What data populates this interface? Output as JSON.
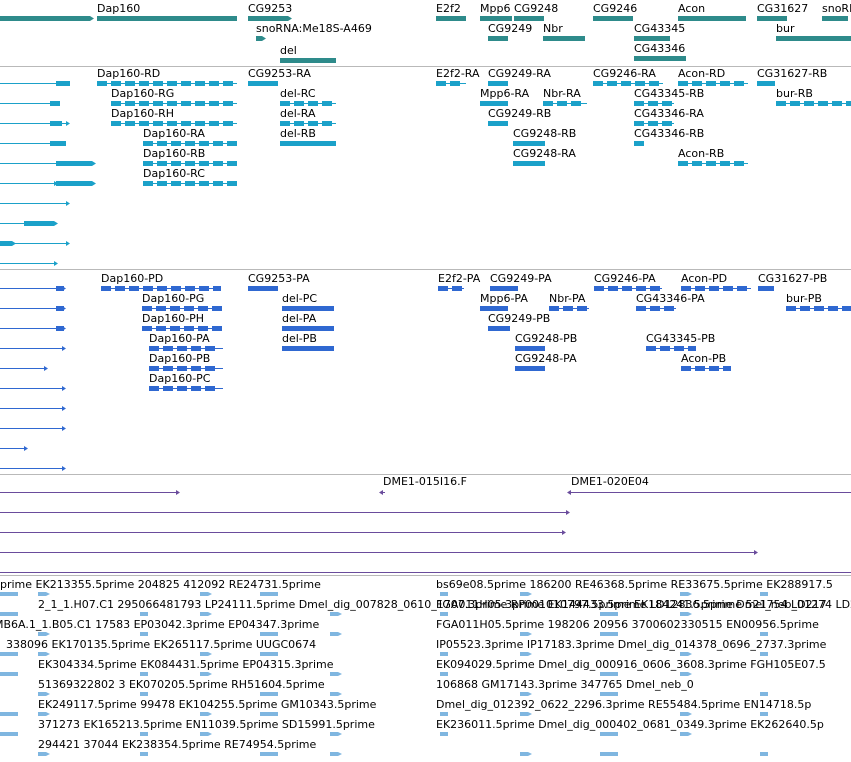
{
  "tracks": {
    "gene_span": {
      "color": "#2e8b8b",
      "labels": [
        "Dap160",
        "CG9253",
        "snoRNA:Me18S-A469",
        "del",
        "E2f2",
        "Mpp6",
        "CG9248",
        "CG9249",
        "Nbr",
        "CG9246",
        "CG43345",
        "CG43346",
        "Acon",
        "CG31627",
        "snoRN",
        "bur"
      ]
    },
    "transcripts_ra": {
      "color": "#1ba1c9",
      "labels": [
        "Dap160-RD",
        "Dap160-RG",
        "Dap160-RH",
        "Dap160-RA",
        "Dap160-RB",
        "Dap160-RC",
        "CG9253-RA",
        "del-RC",
        "del-RA",
        "del-RB",
        "E2f2-RA",
        "CG9249-RA",
        "Mpp6-RA",
        "Nbr-RA",
        "CG9249-RB",
        "CG9248-RB",
        "CG9248-RA",
        "CG9246-RA",
        "CG43345-RB",
        "CG43346-RA",
        "CG43346-RB",
        "Acon-RD",
        "Acon-RB",
        "CG31627-RB",
        "bur-RB"
      ]
    },
    "proteins_pa": {
      "color": "#2f68d1",
      "labels": [
        "Dap160-PD",
        "Dap160-PG",
        "Dap160-PH",
        "Dap160-PA",
        "Dap160-PB",
        "Dap160-PC",
        "CG9253-PA",
        "del-PC",
        "del-PA",
        "del-PB",
        "E2f2-PA",
        "CG9249-PA",
        "Mpp6-PA",
        "Nbr-PA",
        "CG9249-PB",
        "CG9248-PB",
        "CG9248-PA",
        "CG9246-PA",
        "CG43346-PA",
        "CG43345-PB",
        "Acon-PB",
        "Acon-PD",
        "CG31627-PB",
        "bur-PB"
      ]
    },
    "clones": {
      "color": "#6a4c9c",
      "labels": [
        "DME1-015I16.F",
        "DME1-020E04"
      ]
    },
    "est": {
      "color": "#7fb6e0",
      "rows": [
        "prime EK213355.5prime 204825 412092 RE24731.5prime",
        "bs69e08.5prime 186200 RE46368.5prime RE33675.5prime EK288917.5",
        "2_1_1.H07.C1 295066481793 LP24111.5prime Dmel_dig_007828_0610_1707.3prime RP001010797.5prime EK184241.5prime Dmel_neb_01274 LD217",
        "MB6A.1_1.B05.C1 17583 EP03042.3prime EP04347.3prime",
        "FGA011H05.3prime EK144433.5prime LD12836.5prime 521754 LD217",
        "338096 EK170135.5prime EK265117.5prime UUGC0674",
        "FGA011H05.5prime 198206 20956 3700602330515 EN00956.5prime",
        "EK304334.5prime EK084431.5prime EP04315.3prime",
        "IP05523.3prime IP17183.3prime Dmel_dig_014378_0696_2737.3prime",
        "51369322802 3 EK070205.5prime RH51604.5prime",
        "EK094029.5prime Dmel_dig_000916_0606_3608.3prime FGH105E07.5",
        "EK249117.5prime 99478 EK104255.5prime GM10343.5prime",
        "106868 GM17143.3prime 347765 Dmel_neb_0",
        "371273 EK165213.5prime EN11039.5prime SD15991.5prime",
        "Dmel_dig_012392_0622_2296.3prime RE55484.5prime EN14718.5p",
        "294421 37044 EK238354.5prime RE74954.5prime",
        "EK236011.5prime Dmel_dig_000402_0681_0349.3prime EK262640.5p"
      ]
    }
  }
}
